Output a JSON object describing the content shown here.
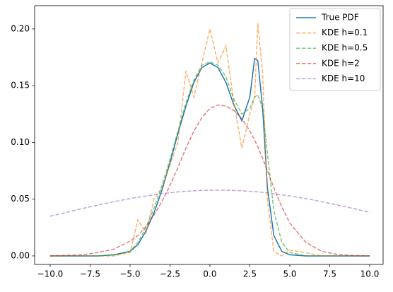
{
  "chart_data": {
    "type": "line",
    "x": [
      -10,
      -9,
      -8,
      -7,
      -6,
      -5,
      -4.5,
      -4,
      -3.5,
      -3,
      -2.5,
      -2,
      -1.5,
      -1,
      -0.5,
      0,
      0.5,
      1,
      1.5,
      2,
      2.5,
      2.8,
      3,
      3.3,
      3.6,
      4,
      4.5,
      5,
      6,
      7,
      8,
      9,
      10
    ],
    "series": [
      {
        "name": "True PDF",
        "color": "#1f77b4",
        "dashed": false,
        "values": [
          0,
          0,
          0,
          0,
          0.001,
          0.004,
          0.01,
          0.022,
          0.038,
          0.058,
          0.082,
          0.108,
          0.132,
          0.153,
          0.166,
          0.17,
          0.166,
          0.153,
          0.133,
          0.119,
          0.14,
          0.174,
          0.172,
          0.13,
          0.06,
          0.018,
          0.004,
          0.001,
          0,
          0,
          0,
          0,
          0
        ]
      },
      {
        "name": "KDE h=0.1",
        "color": "#ff7f0e",
        "dashed": true,
        "values": [
          0,
          0,
          0,
          0,
          0,
          0.003,
          0.032,
          0.02,
          0.05,
          0.06,
          0.08,
          0.1,
          0.163,
          0.14,
          0.17,
          0.2,
          0.17,
          0.185,
          0.135,
          0.095,
          0.125,
          0.14,
          0.205,
          0.16,
          0.05,
          0.004,
          0,
          0.005,
          0.003,
          0,
          0,
          0,
          0
        ]
      },
      {
        "name": "KDE h=0.5",
        "color": "#2ca02c",
        "dashed": true,
        "values": [
          0,
          0,
          0,
          0,
          0.001,
          0.004,
          0.012,
          0.025,
          0.042,
          0.062,
          0.085,
          0.11,
          0.135,
          0.155,
          0.168,
          0.171,
          0.168,
          0.158,
          0.138,
          0.125,
          0.13,
          0.14,
          0.142,
          0.13,
          0.09,
          0.04,
          0.012,
          0.003,
          0,
          0,
          0,
          0,
          0
        ]
      },
      {
        "name": "KDE h=2",
        "color": "#d62728",
        "dashed": true,
        "values": [
          0,
          0.0005,
          0.001,
          0.003,
          0.006,
          0.013,
          0.018,
          0.026,
          0.036,
          0.048,
          0.062,
          0.078,
          0.095,
          0.11,
          0.122,
          0.13,
          0.133,
          0.132,
          0.128,
          0.121,
          0.11,
          0.102,
          0.096,
          0.086,
          0.075,
          0.06,
          0.043,
          0.029,
          0.012,
          0.004,
          0.0012,
          0.0003,
          0.0001
        ]
      },
      {
        "name": "KDE h=10",
        "color": "#9467bd",
        "dashed": true,
        "values": [
          0.035,
          0.0383,
          0.0417,
          0.0448,
          0.0478,
          0.0505,
          0.0517,
          0.0528,
          0.0539,
          0.0548,
          0.0557,
          0.0564,
          0.0569,
          0.0574,
          0.0577,
          0.0579,
          0.058,
          0.0579,
          0.0577,
          0.0574,
          0.0569,
          0.0566,
          0.0564,
          0.056,
          0.0555,
          0.0548,
          0.0539,
          0.0528,
          0.0505,
          0.0478,
          0.0448,
          0.0417,
          0.0383
        ]
      }
    ],
    "xlim": [
      -10.97,
      10.84
    ],
    "ylim": [
      -0.0075,
      0.2205
    ],
    "xticks": [
      {
        "value": -10,
        "label": "−10.0"
      },
      {
        "value": -7.5,
        "label": "−7.5"
      },
      {
        "value": -5,
        "label": "−5.0"
      },
      {
        "value": -2.5,
        "label": "−2.5"
      },
      {
        "value": 0,
        "label": "0.0"
      },
      2.5,
      {
        "value": 5,
        "label": "5.0"
      },
      7.5,
      {
        "value": 10,
        "label": "10.0"
      }
    ],
    "yticks": [
      {
        "value": 0,
        "label": "0.00"
      },
      {
        "value": 0.05,
        "label": "0.05"
      },
      {
        "value": 0.1,
        "label": "0.10"
      },
      {
        "value": 0.15,
        "label": "0.15"
      },
      {
        "value": 0.2,
        "label": "0.20"
      }
    ],
    "grid": false,
    "legend": "upper right"
  }
}
